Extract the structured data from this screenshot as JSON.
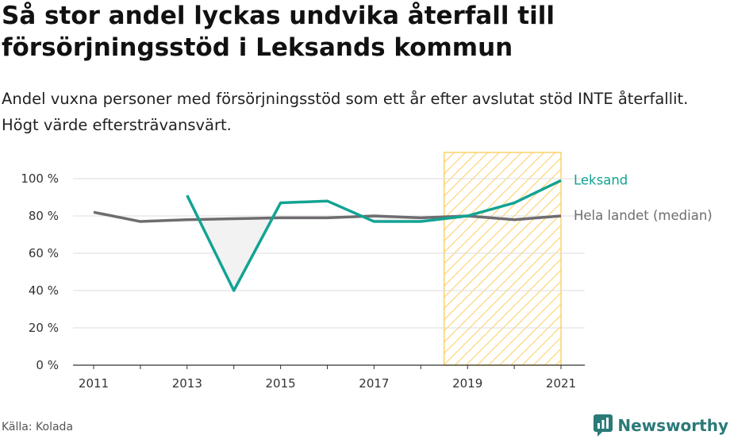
{
  "header": {
    "title": "Så stor andel lyckas undvika återfall till försörjningsstöd i Leksands kommun",
    "subtitle": "Andel vuxna personer med försörjningsstöd som ett år efter avslutat stöd INTE återfallit. Högt värde eftersträvansvärt."
  },
  "footer": {
    "source": "Källa: Kolada",
    "brand": "Newsworthy"
  },
  "colors": {
    "leksand": "#12a393",
    "national": "#6f6c70",
    "highlight": "#fbd16a",
    "grid": "#dcdcdc",
    "area_fill": "#f2f2f2",
    "brand": "#2b7a78"
  },
  "chart_data": {
    "type": "line",
    "x": [
      2011,
      2012,
      2013,
      2014,
      2015,
      2016,
      2017,
      2018,
      2019,
      2020,
      2021
    ],
    "series": [
      {
        "name": "Leksand",
        "values": [
          null,
          null,
          91,
          40,
          87,
          88,
          77,
          77,
          80,
          87,
          99
        ]
      },
      {
        "name": "Hela landet (median)",
        "values": [
          82,
          77,
          78,
          78.5,
          79,
          79,
          80,
          79,
          80,
          78,
          80
        ]
      }
    ],
    "x_ticks": [
      "2011",
      "2013",
      "2015",
      "2017",
      "2019",
      "2021"
    ],
    "y_ticks": [
      "0 %",
      "20 %",
      "40 %",
      "60 %",
      "80 %",
      "100 %"
    ],
    "y_tick_values": [
      0,
      20,
      40,
      60,
      80,
      100
    ],
    "ylim": [
      0,
      100
    ],
    "xlim": [
      2011,
      2021
    ],
    "highlight_range": [
      2018.5,
      2021
    ],
    "grid": true,
    "legend": "direct labels at line ends"
  }
}
